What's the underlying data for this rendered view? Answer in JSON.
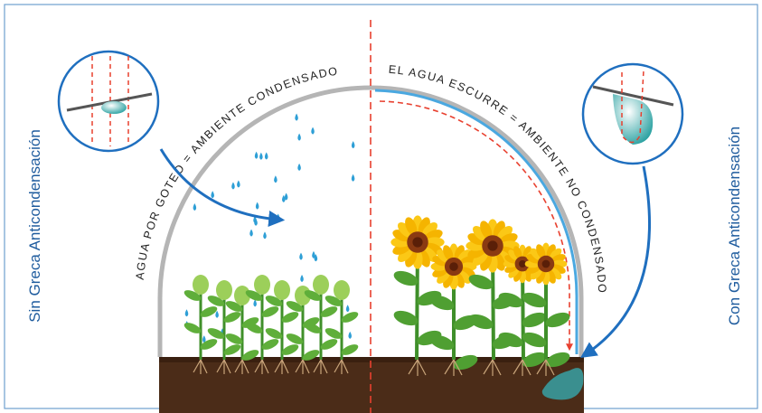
{
  "left_label": "Sin Greca Anticondensación",
  "right_label": "Con Greca Anticondensación",
  "left_arc_text": "AGUA POR GOTEO = AMBIENTE CONDENSADO",
  "right_arc_text": "EL AGUA ESCURRE = AMBIENTE NO CONDENSADO"
}
